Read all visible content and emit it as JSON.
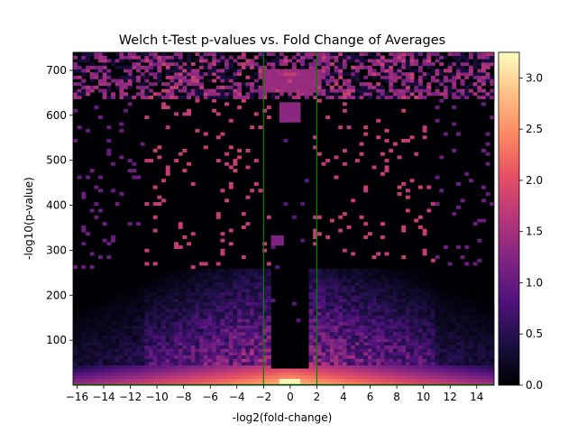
{
  "chart_data": {
    "type": "heatmap",
    "title": "Welch t-Test p-values vs. Fold Change of Averages",
    "xlabel": "-log2(fold-change)",
    "ylabel": "-log10(p-value)",
    "xlim": [
      -16.3,
      15.3
    ],
    "ylim": [
      0,
      740
    ],
    "xticks": [
      -16,
      -14,
      -12,
      -10,
      -8,
      -6,
      -4,
      -2,
      0,
      2,
      4,
      6,
      8,
      10,
      12,
      14
    ],
    "yticks": [
      100,
      200,
      300,
      400,
      500,
      600,
      700
    ],
    "threshold_lines": {
      "x": [
        -2,
        2
      ],
      "y": 0,
      "color": "#008000"
    },
    "colormap": "magma",
    "colorbar": {
      "min": 0.0,
      "max": 3.25,
      "ticks": [
        0.0,
        0.5,
        1.0,
        1.5,
        2.0,
        2.5,
        3.0
      ]
    },
    "bins": {
      "nx": 100,
      "ny": 100
    },
    "grid": false
  }
}
